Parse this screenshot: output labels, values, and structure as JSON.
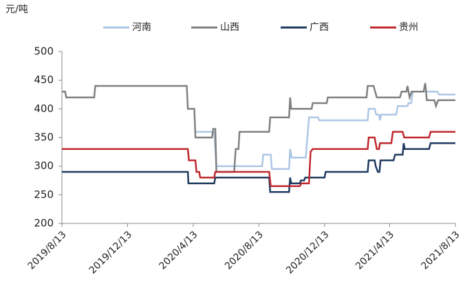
{
  "chart_data": {
    "type": "line",
    "y_label": "元/吨",
    "ylim": [
      200,
      500
    ],
    "yticks": [
      200,
      250,
      300,
      350,
      400,
      450,
      500
    ],
    "xlim": [
      "2019/8/13",
      "2021/8/13"
    ],
    "xticks": [
      "2019/8/13",
      "2019/12/13",
      "2020/4/13",
      "2020/8/13",
      "2020/12/13",
      "2021/4/13",
      "2021/8/13"
    ],
    "legend": "top",
    "series": [
      {
        "name": "河南",
        "color": "#adc6e5",
        "x": [
          "2020/4/17",
          "2020/5/22",
          "2020/5/26",
          "2020/8/19",
          "2020/8/21",
          "2020/9/4",
          "2020/9/6",
          "2020/10/8",
          "2020/10/10",
          "2020/10/13",
          "2020/11/8",
          "2020/11/14",
          "2020/12/1",
          "2020/12/3",
          "2021/3/3",
          "2021/3/5",
          "2021/3/16",
          "2021/3/19",
          "2021/3/24",
          "2021/3/26",
          "2021/3/28",
          "2021/4/25",
          "2021/4/28",
          "2021/5/16",
          "2021/5/18",
          "2021/5/23",
          "2021/5/26",
          "2021/7/10",
          "2021/7/14",
          "2021/8/13"
        ],
        "values": [
          360,
          360,
          300,
          300,
          320,
          320,
          295,
          295,
          330,
          315,
          315,
          385,
          385,
          380,
          380,
          400,
          400,
          390,
          390,
          380,
          390,
          390,
          405,
          405,
          410,
          410,
          430,
          430,
          425,
          425
        ]
      },
      {
        "name": "山西",
        "color": "#808080",
        "x": [
          "2019/8/13",
          "2019/8/19",
          "2019/8/21",
          "2019/10/12",
          "2019/10/14",
          "2020/4/1",
          "2020/4/3",
          "2020/4/15",
          "2020/4/17",
          "2020/5/18",
          "2020/5/20",
          "2020/5/24",
          "2020/5/26",
          "2020/6/28",
          "2020/7/1",
          "2020/7/6",
          "2020/7/8",
          "2020/9/1",
          "2020/9/3",
          "2020/10/8",
          "2020/10/10",
          "2020/10/12",
          "2020/11/19",
          "2020/11/21",
          "2020/12/17",
          "2020/12/19",
          "2021/3/1",
          "2021/3/3",
          "2021/3/14",
          "2021/3/17",
          "2021/3/20",
          "2021/5/2",
          "2021/5/5",
          "2021/5/14",
          "2021/5/16",
          "2021/5/20",
          "2021/5/24",
          "2021/6/15",
          "2021/6/18",
          "2021/6/21",
          "2021/7/5",
          "2021/7/8",
          "2021/7/12",
          "2021/8/13"
        ],
        "values": [
          430,
          430,
          420,
          420,
          440,
          440,
          400,
          400,
          350,
          350,
          365,
          365,
          290,
          290,
          330,
          330,
          360,
          360,
          385,
          385,
          420,
          400,
          400,
          410,
          410,
          420,
          420,
          440,
          440,
          430,
          420,
          420,
          430,
          430,
          440,
          420,
          430,
          430,
          445,
          415,
          415,
          405,
          415,
          415
        ]
      },
      {
        "name": "广西",
        "color": "#1f3a5f",
        "x": [
          "2019/8/13",
          "2020/4/3",
          "2020/4/4",
          "2020/5/22",
          "2020/5/24",
          "2020/9/1",
          "2020/9/3",
          "2020/10/8",
          "2020/10/10",
          "2020/10/12",
          "2020/10/28",
          "2020/10/30",
          "2020/11/5",
          "2020/11/7",
          "2020/12/13",
          "2020/12/15",
          "2021/3/3",
          "2021/3/5",
          "2021/3/16",
          "2021/3/18",
          "2021/3/22",
          "2021/3/25",
          "2021/3/27",
          "2021/4/20",
          "2021/4/23",
          "2021/5/7",
          "2021/5/9",
          "2021/5/11",
          "2021/6/25",
          "2021/6/28",
          "2021/8/13"
        ],
        "values": [
          290,
          290,
          270,
          270,
          280,
          280,
          255,
          255,
          280,
          270,
          270,
          275,
          275,
          280,
          280,
          290,
          290,
          310,
          310,
          300,
          290,
          290,
          310,
          310,
          320,
          320,
          340,
          330,
          330,
          340,
          340
        ]
      },
      {
        "name": "贵州",
        "color": "#c0282d",
        "x": [
          "2019/8/13",
          "2020/4/3",
          "2020/4/5",
          "2020/4/17",
          "2020/4/19",
          "2020/4/24",
          "2020/4/26",
          "2020/5/22",
          "2020/5/24",
          "2020/9/1",
          "2020/9/4",
          "2020/10/28",
          "2020/10/31",
          "2020/11/14",
          "2020/11/17",
          "2020/11/21",
          "2021/3/3",
          "2021/3/5",
          "2021/3/16",
          "2021/3/18",
          "2021/3/20",
          "2021/3/24",
          "2021/3/26",
          "2021/4/16",
          "2021/4/19",
          "2021/5/7",
          "2021/5/10",
          "2021/6/25",
          "2021/6/28",
          "2021/8/13"
        ],
        "values": [
          330,
          330,
          310,
          310,
          290,
          290,
          280,
          280,
          290,
          290,
          265,
          265,
          270,
          270,
          325,
          330,
          330,
          350,
          350,
          340,
          330,
          330,
          340,
          340,
          360,
          360,
          350,
          350,
          360,
          360
        ]
      }
    ]
  }
}
